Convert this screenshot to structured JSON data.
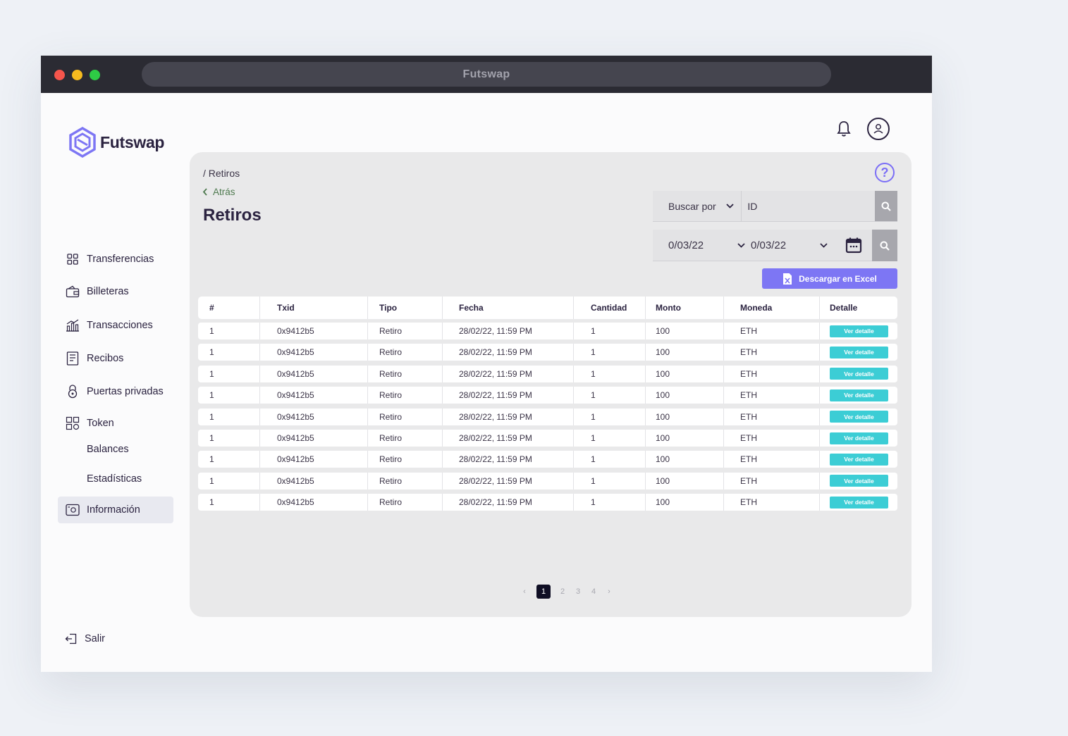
{
  "browser": {
    "title": "Futswap"
  },
  "brand": {
    "name": "Futswap",
    "accent": "#7d76f4",
    "teal": "#3ccdd5"
  },
  "header": {
    "bell_icon": "bell-icon",
    "avatar_icon": "user-icon"
  },
  "sidebar": {
    "items": [
      {
        "label": "Transferencias",
        "icon": "grid-icon"
      },
      {
        "label": "Billeteras",
        "icon": "wallet-icon"
      },
      {
        "label": "Transacciones",
        "icon": "chart-icon"
      },
      {
        "label": "Recibos",
        "icon": "receipt-icon"
      },
      {
        "label": "Puertas privadas",
        "icon": "lock-icon"
      },
      {
        "label": "Token",
        "icon": "token-icon"
      },
      {
        "label": "Balances"
      },
      {
        "label": "Estadísticas"
      },
      {
        "label": "Información",
        "icon": "info-icon",
        "active": true
      }
    ],
    "logout": "Salir"
  },
  "main": {
    "breadcrumb": "/ Retiros",
    "back": "Atrás",
    "title": "Retiros",
    "search": {
      "select_label": "Buscar por",
      "value": "ID"
    },
    "dates": {
      "from": "0/03/22",
      "to": "0/03/22"
    },
    "excel_label": "Descargar en Excel",
    "table": {
      "headers": [
        "#",
        "Txid",
        "Tipo",
        "Fecha",
        "Cantidad",
        "Monto",
        "Moneda",
        "Detalle"
      ],
      "rows": [
        [
          "1",
          "0x9412b5",
          "Retiro",
          "28/02/22, 11:59 PM",
          "1",
          "100",
          "ETH",
          "Ver detalle"
        ],
        [
          "1",
          "0x9412b5",
          "Retiro",
          "28/02/22, 11:59 PM",
          "1",
          "100",
          "ETH",
          "Ver detalle"
        ],
        [
          "1",
          "0x9412b5",
          "Retiro",
          "28/02/22, 11:59 PM",
          "1",
          "100",
          "ETH",
          "Ver detalle"
        ],
        [
          "1",
          "0x9412b5",
          "Retiro",
          "28/02/22, 11:59 PM",
          "1",
          "100",
          "ETH",
          "Ver detalle"
        ],
        [
          "1",
          "0x9412b5",
          "Retiro",
          "28/02/22, 11:59 PM",
          "1",
          "100",
          "ETH",
          "Ver detalle"
        ],
        [
          "1",
          "0x9412b5",
          "Retiro",
          "28/02/22, 11:59 PM",
          "1",
          "100",
          "ETH",
          "Ver detalle"
        ],
        [
          "1",
          "0x9412b5",
          "Retiro",
          "28/02/22, 11:59 PM",
          "1",
          "100",
          "ETH",
          "Ver detalle"
        ],
        [
          "1",
          "0x9412b5",
          "Retiro",
          "28/02/22, 11:59 PM",
          "1",
          "100",
          "ETH",
          "Ver detalle"
        ],
        [
          "1",
          "0x9412b5",
          "Retiro",
          "28/02/22, 11:59 PM",
          "1",
          "100",
          "ETH",
          "Ver detalle"
        ]
      ]
    },
    "pagination": {
      "prev": "‹",
      "pages": [
        "1",
        "2",
        "3",
        "4"
      ],
      "current": "1",
      "next": "›"
    }
  }
}
